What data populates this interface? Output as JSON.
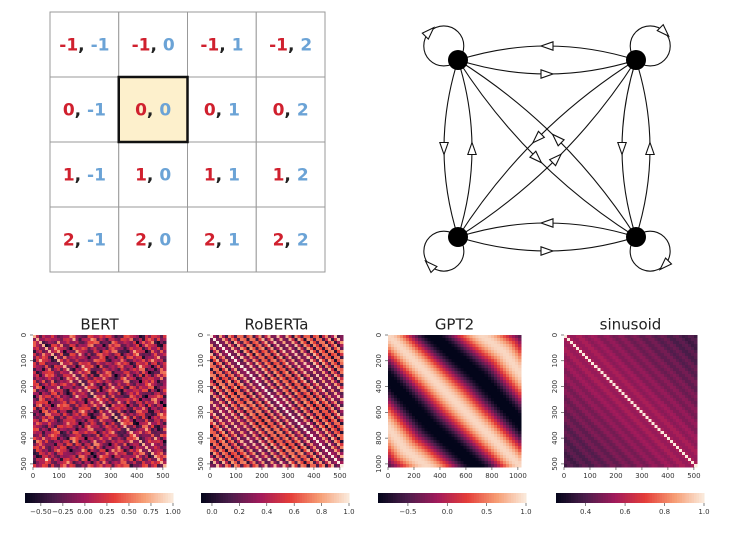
{
  "position_grid": {
    "separator": ", ",
    "highlight": [
      1,
      1
    ],
    "rows": [
      [
        {
          "row": "-1",
          "col": "-1"
        },
        {
          "row": "-1",
          "col": "0"
        },
        {
          "row": "-1",
          "col": "1"
        },
        {
          "row": "-1",
          "col": "2"
        }
      ],
      [
        {
          "row": "0",
          "col": "-1"
        },
        {
          "row": "0",
          "col": "0"
        },
        {
          "row": "0",
          "col": "1"
        },
        {
          "row": "0",
          "col": "2"
        }
      ],
      [
        {
          "row": "1",
          "col": "-1"
        },
        {
          "row": "1",
          "col": "0"
        },
        {
          "row": "1",
          "col": "1"
        },
        {
          "row": "1",
          "col": "2"
        }
      ],
      [
        {
          "row": "2",
          "col": "-1"
        },
        {
          "row": "2",
          "col": "0"
        },
        {
          "row": "2",
          "col": "1"
        },
        {
          "row": "2",
          "col": "2"
        }
      ]
    ]
  },
  "heatmaps": [
    {
      "title": "BERT",
      "pattern": "bert",
      "xlim": [
        0,
        512
      ],
      "xticks": [
        0,
        100,
        200,
        300,
        400,
        500
      ],
      "ylim": [
        0,
        512
      ],
      "yticks": [
        0,
        100,
        200,
        300,
        400,
        500
      ],
      "colorbar": {
        "lim": [
          -0.68,
          1.0
        ],
        "ticks": [
          {
            "value": -0.5,
            "label": "−0.50"
          },
          {
            "value": -0.25,
            "label": "−0.25"
          },
          {
            "value": 0,
            "label": "0.00"
          },
          {
            "value": 0.25,
            "label": "0.25"
          },
          {
            "value": 0.5,
            "label": "0.50"
          },
          {
            "value": 0.75,
            "label": "0.75"
          },
          {
            "value": 1,
            "label": "1.00"
          }
        ]
      }
    },
    {
      "title": "RoBERTa",
      "pattern": "roberta",
      "xlim": [
        0,
        512
      ],
      "xticks": [
        0,
        100,
        200,
        300,
        400,
        500
      ],
      "ylim": [
        0,
        512
      ],
      "yticks": [
        0,
        100,
        200,
        300,
        400,
        500
      ],
      "colorbar": {
        "lim": [
          -0.08,
          1.0
        ],
        "ticks": [
          {
            "value": 0,
            "label": "0.0"
          },
          0.2,
          0.4,
          0.6,
          0.8,
          {
            "value": 1,
            "label": "1.0"
          }
        ]
      }
    },
    {
      "title": "GPT2",
      "pattern": "gpt2",
      "xlim": [
        0,
        1024
      ],
      "xticks": [
        0,
        200,
        400,
        600,
        800,
        1000
      ],
      "ylim": [
        0,
        1024
      ],
      "yticks": [
        0,
        200,
        400,
        600,
        800,
        1000
      ],
      "colorbar": {
        "lim": [
          -0.88,
          1.0
        ],
        "ticks": [
          {
            "value": -0.5,
            "label": "−0.5"
          },
          {
            "value": 0,
            "label": "0.0"
          },
          0.5,
          {
            "value": 1,
            "label": "1.0"
          }
        ]
      }
    },
    {
      "title": "sinusoid",
      "pattern": "sinusoid",
      "xlim": [
        0,
        512
      ],
      "xticks": [
        0,
        100,
        200,
        300,
        400,
        500
      ],
      "ylim": [
        0,
        512
      ],
      "yticks": [
        0,
        100,
        200,
        300,
        400,
        500
      ],
      "colorbar": {
        "lim": [
          0.25,
          1.0
        ],
        "ticks": [
          0.4,
          0.6,
          0.8,
          {
            "value": 1,
            "label": "1.0"
          }
        ]
      }
    }
  ]
}
